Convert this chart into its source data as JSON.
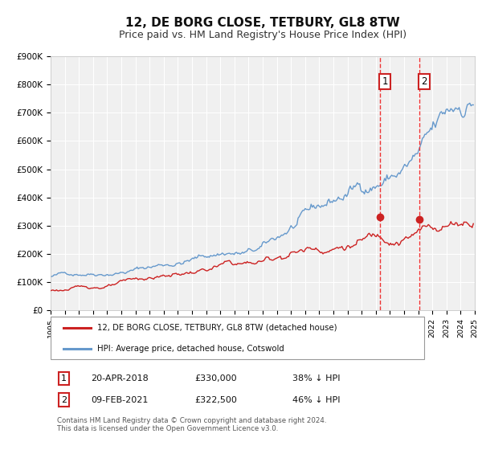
{
  "title": "12, DE BORG CLOSE, TETBURY, GL8 8TW",
  "subtitle": "Price paid vs. HM Land Registry's House Price Index (HPI)",
  "title_fontsize": 11,
  "subtitle_fontsize": 9,
  "hpi_color": "#6699cc",
  "price_color": "#cc2222",
  "marker_color": "#cc2222",
  "vline_color": "#ee3333",
  "background_color": "#ffffff",
  "plot_bg_color": "#f0f0f0",
  "grid_color": "#ffffff",
  "ylim": [
    0,
    900000
  ],
  "xlim_start": 1995.0,
  "xlim_end": 2025.0,
  "ytick_labels": [
    "£0",
    "£100K",
    "£200K",
    "£300K",
    "£400K",
    "£500K",
    "£600K",
    "£700K",
    "£800K",
    "£900K"
  ],
  "ytick_values": [
    0,
    100000,
    200000,
    300000,
    400000,
    500000,
    600000,
    700000,
    800000,
    900000
  ],
  "sale1_year": 2018.29,
  "sale1_price": 330000,
  "sale2_year": 2021.09,
  "sale2_price": 322500,
  "legend_label_red": "12, DE BORG CLOSE, TETBURY, GL8 8TW (detached house)",
  "legend_label_blue": "HPI: Average price, detached house, Cotswold",
  "footer_text": "Contains HM Land Registry data © Crown copyright and database right 2024.\nThis data is licensed under the Open Government Licence v3.0.",
  "sale1_date": "20-APR-2018",
  "sale1_pct": "38% ↓ HPI",
  "sale1_price_label": "£330,000",
  "sale2_date": "09-FEB-2021",
  "sale2_pct": "46% ↓ HPI",
  "sale2_price_label": "£322,500"
}
